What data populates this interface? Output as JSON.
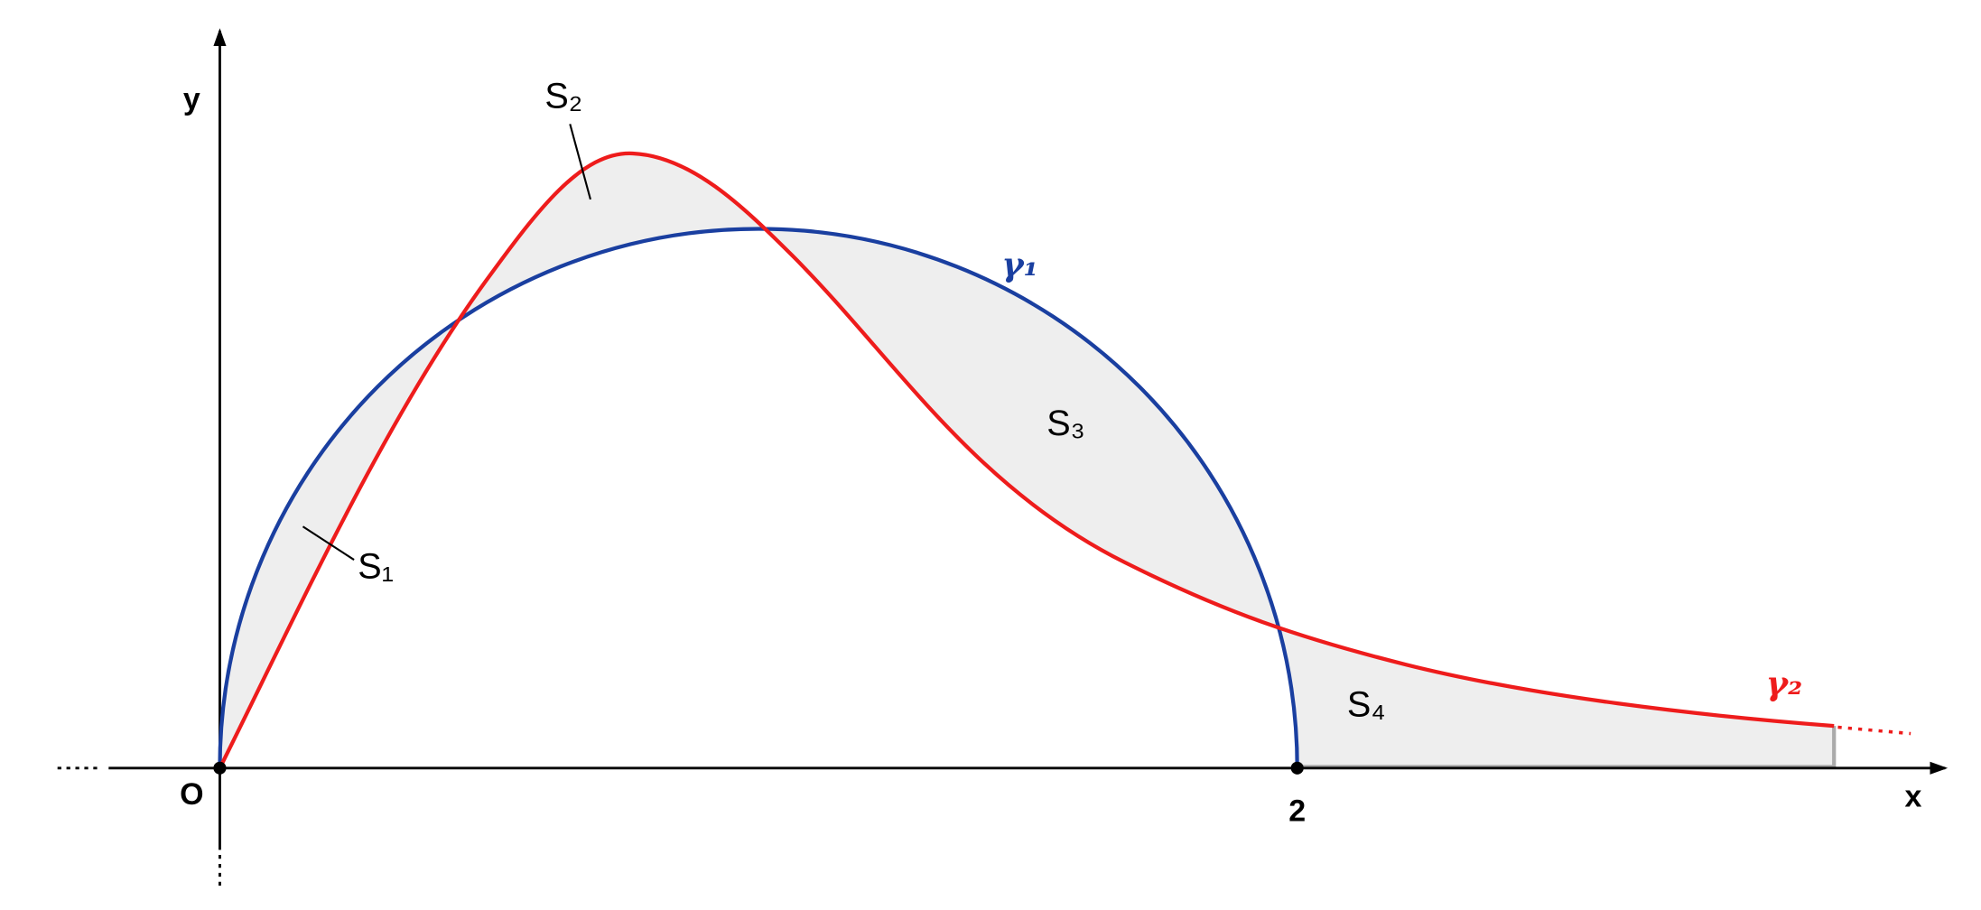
{
  "axes": {
    "y_label": "y",
    "x_label": "x",
    "origin_label": "O",
    "x_tick_label": "2"
  },
  "regions": [
    {
      "label": "S₁"
    },
    {
      "label": "S₂"
    },
    {
      "label": "S₃"
    },
    {
      "label": "S₄"
    }
  ],
  "curves": [
    {
      "label": "γ₁"
    },
    {
      "label": "γ₂"
    }
  ]
}
